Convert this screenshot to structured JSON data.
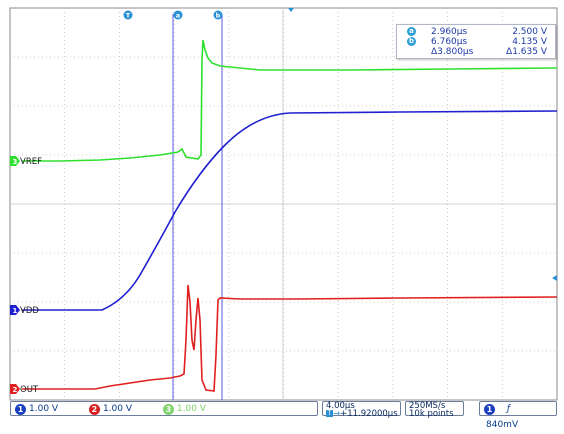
{
  "cursor_readout": {
    "a": {
      "label": "a",
      "time": "2.960µs",
      "voltage": "2.500 V"
    },
    "b": {
      "label": "b",
      "time": "6.760µs",
      "voltage": "4.135 V"
    },
    "delta": {
      "time": "Δ3.800µs",
      "voltage": "Δ1.635 V"
    }
  },
  "top_markers": {
    "trigger": "T",
    "a": "a",
    "b": "b"
  },
  "channels": {
    "vref": {
      "label": "VREF",
      "color": "#2fe02f"
    },
    "vdd": {
      "label": "VDD",
      "number": "1",
      "color": "#2030d0"
    },
    "out": {
      "label": "OUT",
      "number": "2",
      "color": "#e02020"
    }
  },
  "status_bar": {
    "ch1": {
      "number": "1",
      "scale": "1.00 V",
      "color": "#1c3fbf"
    },
    "ch2": {
      "number": "2",
      "scale": "1.00 V",
      "color": "#d82020"
    },
    "ch3": {
      "number": "3",
      "scale": "1.00 V",
      "color": "#7fd36a"
    },
    "timebase": "4.00µs",
    "trigger_position": "+11.92000µs",
    "sample_rate": "250MS/s",
    "record_length": "10k points",
    "trigger_channel": "1",
    "trigger_level": "840mV"
  },
  "colors": {
    "screen_bg": "#ffffff",
    "grid": "#b8b8b8",
    "cursor_line": "#4040e0",
    "marker": "#2a90d6"
  }
}
